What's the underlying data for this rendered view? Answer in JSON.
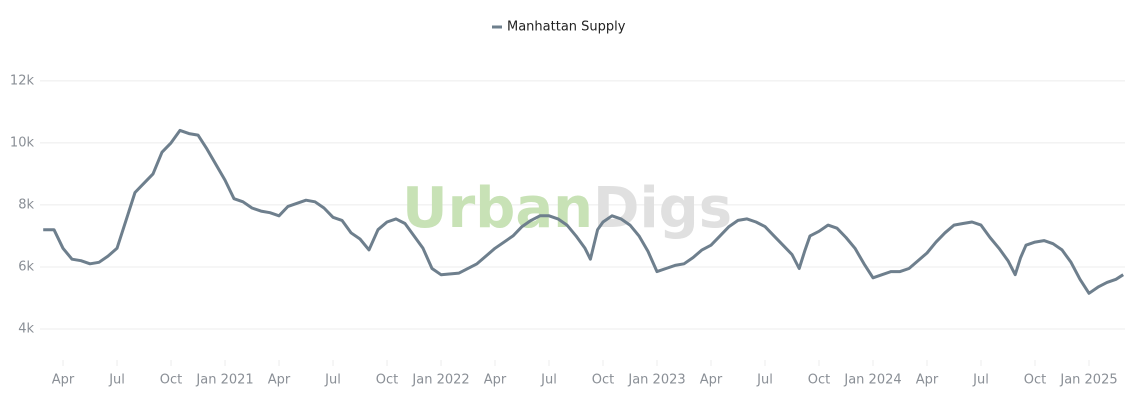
{
  "chart_data": {
    "type": "line",
    "watermark": [
      "Urban",
      "Digs"
    ],
    "x": [
      1.9,
      2.5,
      3,
      3.5,
      4,
      4.5,
      5,
      5.5,
      6,
      6.5,
      7,
      7.5,
      8,
      8.5,
      9,
      9.5,
      10,
      10.5,
      11,
      11.5,
      12,
      12.5,
      13,
      13.5,
      14,
      14.5,
      15,
      15.5,
      16,
      16.5,
      17,
      17.5,
      18,
      18.5,
      19,
      19.5,
      20,
      20.5,
      21,
      21.5,
      22,
      22.5,
      23,
      23.5,
      24,
      25,
      26,
      27,
      28,
      28.5,
      29,
      29.5,
      30,
      30.5,
      31,
      31.5,
      32,
      32.3,
      32.7,
      33,
      33.5,
      34,
      34.5,
      35,
      35.5,
      36,
      36.5,
      37,
      37.5,
      38,
      38.5,
      39,
      39.5,
      40,
      40.5,
      41,
      41.5,
      42,
      42.5,
      43,
      43.5,
      43.9,
      44.2,
      44.5,
      45,
      45.5,
      46,
      46.5,
      47,
      47.5,
      48,
      48.5,
      49,
      49.5,
      50,
      50.5,
      51,
      51.5,
      52,
      52.5,
      53,
      53.5,
      54,
      54.5,
      55,
      55.5,
      55.9,
      56.2,
      56.5,
      57,
      57.5,
      58,
      58.5,
      59,
      59.5,
      60,
      60.5,
      61,
      61.5,
      61.9
    ],
    "series": [
      {
        "name": "Manhattan Supply",
        "color": "#6e7f8d",
        "values": [
          7200,
          7200,
          6600,
          6250,
          6200,
          6100,
          6150,
          6350,
          6600,
          7500,
          8400,
          8700,
          9000,
          9700,
          10000,
          10400,
          10300,
          10250,
          9800,
          9300,
          8800,
          8200,
          8100,
          7900,
          7800,
          7750,
          7650,
          7950,
          8050,
          8150,
          8100,
          7900,
          7600,
          7500,
          7100,
          6900,
          6550,
          7200,
          7450,
          7550,
          7400,
          7000,
          6600,
          5950,
          5750,
          5800,
          6100,
          6600,
          7000,
          7300,
          7500,
          7650,
          7650,
          7550,
          7350,
          7000,
          6600,
          6250,
          7200,
          7450,
          7650,
          7550,
          7350,
          7000,
          6500,
          5850,
          5950,
          6050,
          6100,
          6300,
          6550,
          6700,
          7000,
          7300,
          7500,
          7550,
          7450,
          7300,
          7000,
          6700,
          6400,
          5950,
          6500,
          7000,
          7150,
          7350,
          7250,
          6950,
          6600,
          6100,
          5650,
          5750,
          5850,
          5850,
          5950,
          6200,
          6450,
          6800,
          7100,
          7350,
          7400,
          7450,
          7350,
          6950,
          6600,
          6200,
          5750,
          6300,
          6700,
          6800,
          6850,
          6750,
          6550,
          6150,
          5600,
          5150,
          5350,
          5500,
          5600,
          5750
        ]
      }
    ],
    "xlim": [
      1.72,
      62
    ],
    "xticks": [
      {
        "value": 3,
        "label": "Apr"
      },
      {
        "value": 6,
        "label": "Jul"
      },
      {
        "value": 9,
        "label": "Oct"
      },
      {
        "value": 12,
        "label": "Jan 2021"
      },
      {
        "value": 15,
        "label": "Apr"
      },
      {
        "value": 18,
        "label": "Jul"
      },
      {
        "value": 21,
        "label": "Oct"
      },
      {
        "value": 24,
        "label": "Jan 2022"
      },
      {
        "value": 27,
        "label": "Apr"
      },
      {
        "value": 30,
        "label": "Jul"
      },
      {
        "value": 33,
        "label": "Oct"
      },
      {
        "value": 36,
        "label": "Jan 2023"
      },
      {
        "value": 39,
        "label": "Apr"
      },
      {
        "value": 42,
        "label": "Jul"
      },
      {
        "value": 45,
        "label": "Oct"
      },
      {
        "value": 48,
        "label": "Jan 2024"
      },
      {
        "value": 51,
        "label": "Apr"
      },
      {
        "value": 54,
        "label": "Jul"
      },
      {
        "value": 57,
        "label": "Oct"
      },
      {
        "value": 60,
        "label": "Jan 2025"
      }
    ],
    "ylim": [
      3000,
      12800
    ],
    "yticks": [
      {
        "value": 4000,
        "label": "4k"
      },
      {
        "value": 6000,
        "label": "6k"
      },
      {
        "value": 8000,
        "label": "8k"
      },
      {
        "value": 10000,
        "label": "10k"
      },
      {
        "value": 12000,
        "label": "12k"
      }
    ],
    "grid": true
  }
}
